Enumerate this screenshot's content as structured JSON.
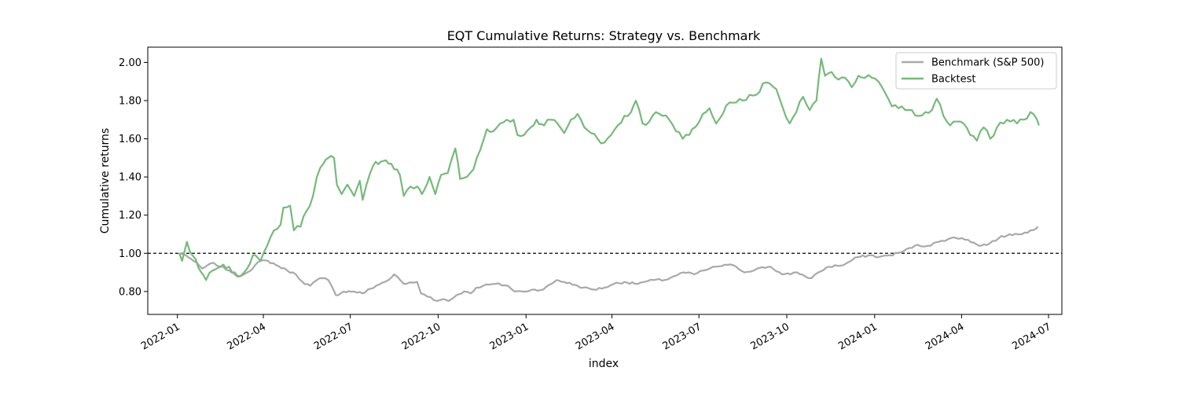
{
  "chart_data": {
    "type": "line",
    "title": "EQT Cumulative Returns: Strategy vs. Benchmark",
    "xlabel": "index",
    "ylabel": "Cumulative returns",
    "xlim": [
      "2021-12-01",
      "2024-07-15"
    ],
    "ylim": [
      0.68,
      2.08
    ],
    "x_ticks": [
      "2022-01-01",
      "2022-04-01",
      "2022-07-01",
      "2022-10-01",
      "2023-01-01",
      "2023-04-01",
      "2023-07-01",
      "2023-10-01",
      "2024-01-01",
      "2024-04-01",
      "2024-07-01"
    ],
    "x_tick_labels": [
      "2022-01",
      "2022-04",
      "2022-07",
      "2022-10",
      "2023-01",
      "2023-04",
      "2023-07",
      "2023-10",
      "2024-01",
      "2024-04",
      "2024-07"
    ],
    "y_ticks": [
      0.8,
      1.0,
      1.2,
      1.4,
      1.6,
      1.8,
      2.0
    ],
    "y_tick_labels": [
      "0.80",
      "1.00",
      "1.20",
      "1.40",
      "1.60",
      "1.80",
      "2.00"
    ],
    "reference_line": {
      "y": 1.0,
      "style": "dashed",
      "color": "#000000"
    },
    "legend": {
      "placement": "top-right"
    },
    "series": [
      {
        "name": "Benchmark (S&P 500)",
        "color": "#a9a9a9",
        "points": [
          [
            "2022-01-03",
            1.0
          ],
          [
            "2022-01-10",
            0.99
          ],
          [
            "2022-01-18",
            0.96
          ],
          [
            "2022-01-27",
            0.92
          ],
          [
            "2022-02-08",
            0.95
          ],
          [
            "2022-02-15",
            0.93
          ],
          [
            "2022-02-24",
            0.91
          ],
          [
            "2022-03-08",
            0.88
          ],
          [
            "2022-03-15",
            0.9
          ],
          [
            "2022-03-29",
            0.96
          ],
          [
            "2022-04-06",
            0.96
          ],
          [
            "2022-04-14",
            0.94
          ],
          [
            "2022-04-26",
            0.91
          ],
          [
            "2022-05-05",
            0.89
          ],
          [
            "2022-05-12",
            0.85
          ],
          [
            "2022-05-20",
            0.83
          ],
          [
            "2022-05-27",
            0.86
          ],
          [
            "2022-06-02",
            0.87
          ],
          [
            "2022-06-08",
            0.86
          ],
          [
            "2022-06-16",
            0.78
          ],
          [
            "2022-06-24",
            0.8
          ],
          [
            "2022-07-05",
            0.8
          ],
          [
            "2022-07-14",
            0.79
          ],
          [
            "2022-07-28",
            0.83
          ],
          [
            "2022-08-10",
            0.86
          ],
          [
            "2022-08-16",
            0.89
          ],
          [
            "2022-08-26",
            0.84
          ],
          [
            "2022-09-09",
            0.85
          ],
          [
            "2022-09-13",
            0.79
          ],
          [
            "2022-09-23",
            0.77
          ],
          [
            "2022-09-30",
            0.75
          ],
          [
            "2022-10-07",
            0.76
          ],
          [
            "2022-10-12",
            0.75
          ],
          [
            "2022-10-20",
            0.78
          ],
          [
            "2022-10-28",
            0.8
          ],
          [
            "2022-11-04",
            0.79
          ],
          [
            "2022-11-10",
            0.82
          ],
          [
            "2022-11-17",
            0.83
          ],
          [
            "2022-11-30",
            0.84
          ],
          [
            "2022-12-13",
            0.83
          ],
          [
            "2022-12-20",
            0.8
          ],
          [
            "2022-12-28",
            0.8
          ],
          [
            "2023-01-10",
            0.81
          ],
          [
            "2023-01-19",
            0.81
          ],
          [
            "2023-02-02",
            0.86
          ],
          [
            "2023-02-10",
            0.85
          ],
          [
            "2023-02-24",
            0.83
          ],
          [
            "2023-03-02",
            0.82
          ],
          [
            "2023-03-13",
            0.81
          ],
          [
            "2023-03-24",
            0.82
          ],
          [
            "2023-04-03",
            0.84
          ],
          [
            "2023-04-14",
            0.85
          ],
          [
            "2023-04-25",
            0.84
          ],
          [
            "2023-05-05",
            0.85
          ],
          [
            "2023-05-15",
            0.86
          ],
          [
            "2023-05-26",
            0.86
          ],
          [
            "2023-06-05",
            0.88
          ],
          [
            "2023-06-15",
            0.9
          ],
          [
            "2023-06-26",
            0.89
          ],
          [
            "2023-07-06",
            0.91
          ],
          [
            "2023-07-19",
            0.93
          ],
          [
            "2023-07-31",
            0.94
          ],
          [
            "2023-08-09",
            0.93
          ],
          [
            "2023-08-18",
            0.9
          ],
          [
            "2023-08-31",
            0.92
          ],
          [
            "2023-09-14",
            0.93
          ],
          [
            "2023-09-26",
            0.89
          ],
          [
            "2023-10-05",
            0.89
          ],
          [
            "2023-10-12",
            0.9
          ],
          [
            "2023-10-20",
            0.88
          ],
          [
            "2023-10-27",
            0.87
          ],
          [
            "2023-11-03",
            0.9
          ],
          [
            "2023-11-14",
            0.93
          ],
          [
            "2023-11-30",
            0.94
          ],
          [
            "2023-12-14",
            0.98
          ],
          [
            "2023-12-28",
            0.99
          ],
          [
            "2024-01-05",
            0.98
          ],
          [
            "2024-01-17",
            0.99
          ],
          [
            "2024-01-31",
            1.01
          ],
          [
            "2024-02-12",
            1.04
          ],
          [
            "2024-02-26",
            1.04
          ],
          [
            "2024-03-08",
            1.06
          ],
          [
            "2024-03-21",
            1.08
          ],
          [
            "2024-04-01",
            1.08
          ],
          [
            "2024-04-08",
            1.07
          ],
          [
            "2024-04-19",
            1.04
          ],
          [
            "2024-04-30",
            1.05
          ],
          [
            "2024-05-10",
            1.08
          ],
          [
            "2024-05-21",
            1.1
          ],
          [
            "2024-06-03",
            1.1
          ],
          [
            "2024-06-12",
            1.12
          ],
          [
            "2024-06-20",
            1.14
          ]
        ]
      },
      {
        "name": "Backtest",
        "color": "#77b97a",
        "points": [
          [
            "2022-01-03",
            1.0
          ],
          [
            "2022-01-06",
            0.96
          ],
          [
            "2022-01-11",
            1.06
          ],
          [
            "2022-01-14",
            1.01
          ],
          [
            "2022-01-20",
            0.97
          ],
          [
            "2022-01-26",
            0.9
          ],
          [
            "2022-01-31",
            0.86
          ],
          [
            "2022-02-07",
            0.91
          ],
          [
            "2022-02-15",
            0.93
          ],
          [
            "2022-02-24",
            0.93
          ],
          [
            "2022-03-02",
            0.89
          ],
          [
            "2022-03-08",
            0.88
          ],
          [
            "2022-03-15",
            0.92
          ],
          [
            "2022-03-21",
            0.99
          ],
          [
            "2022-03-29",
            0.96
          ],
          [
            "2022-04-05",
            1.04
          ],
          [
            "2022-04-12",
            1.12
          ],
          [
            "2022-04-19",
            1.15
          ],
          [
            "2022-04-22",
            1.24
          ],
          [
            "2022-04-29",
            1.25
          ],
          [
            "2022-05-03",
            1.12
          ],
          [
            "2022-05-10",
            1.14
          ],
          [
            "2022-05-16",
            1.22
          ],
          [
            "2022-05-23",
            1.3
          ],
          [
            "2022-05-27",
            1.4
          ],
          [
            "2022-06-03",
            1.47
          ],
          [
            "2022-06-08",
            1.5
          ],
          [
            "2022-06-14",
            1.5
          ],
          [
            "2022-06-17",
            1.36
          ],
          [
            "2022-06-22",
            1.31
          ],
          [
            "2022-06-28",
            1.36
          ],
          [
            "2022-07-05",
            1.3
          ],
          [
            "2022-07-11",
            1.38
          ],
          [
            "2022-07-14",
            1.28
          ],
          [
            "2022-07-18",
            1.36
          ],
          [
            "2022-07-25",
            1.46
          ],
          [
            "2022-08-02",
            1.48
          ],
          [
            "2022-08-10",
            1.47
          ],
          [
            "2022-08-16",
            1.44
          ],
          [
            "2022-08-22",
            1.41
          ],
          [
            "2022-08-26",
            1.3
          ],
          [
            "2022-09-02",
            1.35
          ],
          [
            "2022-09-09",
            1.35
          ],
          [
            "2022-09-14",
            1.31
          ],
          [
            "2022-09-22",
            1.4
          ],
          [
            "2022-09-28",
            1.31
          ],
          [
            "2022-10-04",
            1.41
          ],
          [
            "2022-10-11",
            1.42
          ],
          [
            "2022-10-19",
            1.55
          ],
          [
            "2022-10-24",
            1.39
          ],
          [
            "2022-10-31",
            1.4
          ],
          [
            "2022-11-07",
            1.44
          ],
          [
            "2022-11-14",
            1.54
          ],
          [
            "2022-11-21",
            1.65
          ],
          [
            "2022-11-28",
            1.64
          ],
          [
            "2022-12-05",
            1.68
          ],
          [
            "2022-12-12",
            1.7
          ],
          [
            "2022-12-19",
            1.7
          ],
          [
            "2022-12-23",
            1.62
          ],
          [
            "2022-12-30",
            1.62
          ],
          [
            "2023-01-06",
            1.66
          ],
          [
            "2023-01-12",
            1.7
          ],
          [
            "2023-01-20",
            1.67
          ],
          [
            "2023-01-27",
            1.7
          ],
          [
            "2023-02-03",
            1.68
          ],
          [
            "2023-02-10",
            1.63
          ],
          [
            "2023-02-17",
            1.7
          ],
          [
            "2023-02-24",
            1.73
          ],
          [
            "2023-03-03",
            1.66
          ],
          [
            "2023-03-10",
            1.63
          ],
          [
            "2023-03-17",
            1.6
          ],
          [
            "2023-03-24",
            1.58
          ],
          [
            "2023-03-31",
            1.62
          ],
          [
            "2023-04-07",
            1.67
          ],
          [
            "2023-04-14",
            1.72
          ],
          [
            "2023-04-21",
            1.74
          ],
          [
            "2023-04-26",
            1.8
          ],
          [
            "2023-05-03",
            1.68
          ],
          [
            "2023-05-10",
            1.69
          ],
          [
            "2023-05-17",
            1.74
          ],
          [
            "2023-05-24",
            1.72
          ],
          [
            "2023-05-31",
            1.7
          ],
          [
            "2023-06-07",
            1.64
          ],
          [
            "2023-06-14",
            1.6
          ],
          [
            "2023-06-21",
            1.62
          ],
          [
            "2023-06-27",
            1.66
          ],
          [
            "2023-07-05",
            1.73
          ],
          [
            "2023-07-12",
            1.76
          ],
          [
            "2023-07-19",
            1.68
          ],
          [
            "2023-07-26",
            1.73
          ],
          [
            "2023-08-02",
            1.79
          ],
          [
            "2023-08-09",
            1.79
          ],
          [
            "2023-08-16",
            1.8
          ],
          [
            "2023-08-23",
            1.83
          ],
          [
            "2023-08-30",
            1.83
          ],
          [
            "2023-09-06",
            1.89
          ],
          [
            "2023-09-13",
            1.89
          ],
          [
            "2023-09-20",
            1.86
          ],
          [
            "2023-09-27",
            1.76
          ],
          [
            "2023-10-04",
            1.68
          ],
          [
            "2023-10-11",
            1.74
          ],
          [
            "2023-10-18",
            1.82
          ],
          [
            "2023-10-25",
            1.75
          ],
          [
            "2023-11-01",
            1.8
          ],
          [
            "2023-11-06",
            2.02
          ],
          [
            "2023-11-10",
            1.93
          ],
          [
            "2023-11-17",
            1.95
          ],
          [
            "2023-11-24",
            1.91
          ],
          [
            "2023-12-01",
            1.92
          ],
          [
            "2023-12-08",
            1.87
          ],
          [
            "2023-12-15",
            1.93
          ],
          [
            "2023-12-22",
            1.92
          ],
          [
            "2023-12-29",
            1.92
          ],
          [
            "2024-01-05",
            1.9
          ],
          [
            "2024-01-12",
            1.84
          ],
          [
            "2024-01-19",
            1.77
          ],
          [
            "2024-01-26",
            1.76
          ],
          [
            "2024-02-02",
            1.75
          ],
          [
            "2024-02-09",
            1.75
          ],
          [
            "2024-02-16",
            1.72
          ],
          [
            "2024-02-23",
            1.74
          ],
          [
            "2024-03-01",
            1.75
          ],
          [
            "2024-03-06",
            1.81
          ],
          [
            "2024-03-13",
            1.72
          ],
          [
            "2024-03-20",
            1.67
          ],
          [
            "2024-03-27",
            1.69
          ],
          [
            "2024-04-03",
            1.68
          ],
          [
            "2024-04-10",
            1.62
          ],
          [
            "2024-04-17",
            1.59
          ],
          [
            "2024-04-24",
            1.66
          ],
          [
            "2024-05-01",
            1.6
          ],
          [
            "2024-05-08",
            1.66
          ],
          [
            "2024-05-15",
            1.68
          ],
          [
            "2024-05-22",
            1.69
          ],
          [
            "2024-05-29",
            1.68
          ],
          [
            "2024-06-05",
            1.7
          ],
          [
            "2024-06-12",
            1.74
          ],
          [
            "2024-06-19",
            1.7
          ],
          [
            "2024-06-21",
            1.67
          ]
        ]
      }
    ]
  }
}
